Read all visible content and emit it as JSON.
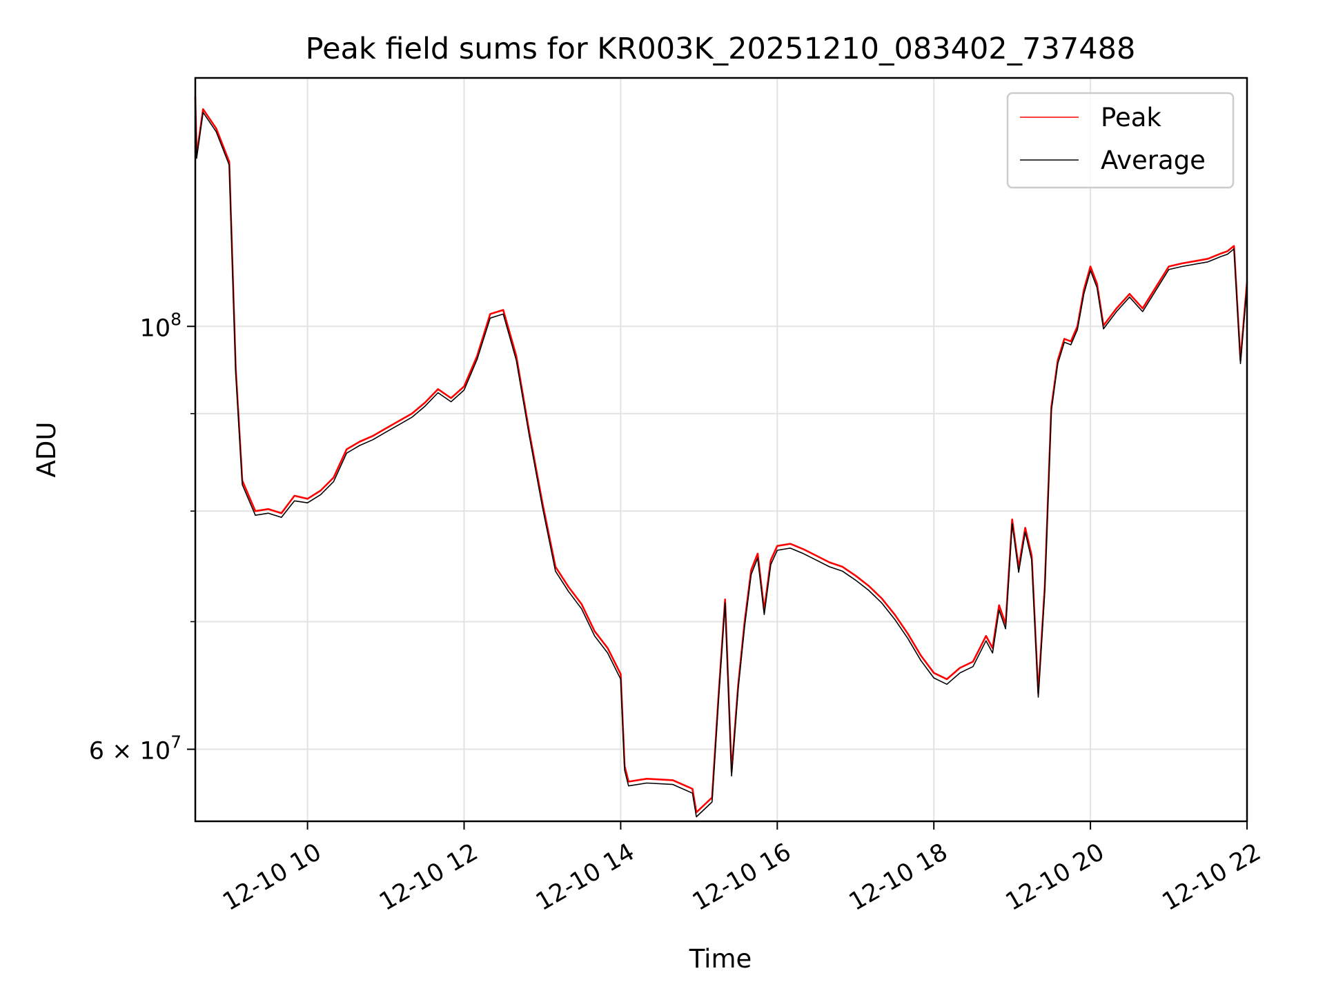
{
  "chart_data": {
    "type": "line",
    "title": "Peak field sums for KR003K_20251210_083402_737488",
    "xlabel": "Time",
    "ylabel": "ADU",
    "yscale": "log",
    "grid": true,
    "legend_position": "top-right",
    "xlim": [
      "2025-12-10 08:34",
      "2025-12-10 22:00"
    ],
    "ylim": [
      55000000,
      135000000
    ],
    "x_ticks": [
      {
        "value": "2025-12-10 10:00",
        "label": "12-10 10"
      },
      {
        "value": "2025-12-10 12:00",
        "label": "12-10 12"
      },
      {
        "value": "2025-12-10 14:00",
        "label": "12-10 14"
      },
      {
        "value": "2025-12-10 16:00",
        "label": "12-10 16"
      },
      {
        "value": "2025-12-10 18:00",
        "label": "12-10 18"
      },
      {
        "value": "2025-12-10 20:00",
        "label": "12-10 20"
      },
      {
        "value": "2025-12-10 22:00",
        "label": "12-10 22"
      }
    ],
    "y_major_ticks": [
      {
        "value": 100000000,
        "mantissa": "10",
        "exp": "8"
      },
      {
        "value": 60000000,
        "mantissa": "6 × 10",
        "exp": "7"
      }
    ],
    "y_minor_ticks": [
      70000000,
      80000000,
      90000000
    ],
    "x": [
      "2025-12-10 08:34",
      "2025-12-10 08:35",
      "2025-12-10 08:40",
      "2025-12-10 08:50",
      "2025-12-10 09:00",
      "2025-12-10 09:05",
      "2025-12-10 09:10",
      "2025-12-10 09:20",
      "2025-12-10 09:30",
      "2025-12-10 09:40",
      "2025-12-10 09:50",
      "2025-12-10 10:00",
      "2025-12-10 10:10",
      "2025-12-10 10:20",
      "2025-12-10 10:30",
      "2025-12-10 10:40",
      "2025-12-10 10:50",
      "2025-12-10 11:00",
      "2025-12-10 11:10",
      "2025-12-10 11:20",
      "2025-12-10 11:30",
      "2025-12-10 11:40",
      "2025-12-10 11:50",
      "2025-12-10 12:00",
      "2025-12-10 12:10",
      "2025-12-10 12:20",
      "2025-12-10 12:30",
      "2025-12-10 12:40",
      "2025-12-10 12:50",
      "2025-12-10 13:00",
      "2025-12-10 13:10",
      "2025-12-10 13:20",
      "2025-12-10 13:30",
      "2025-12-10 13:40",
      "2025-12-10 13:50",
      "2025-12-10 14:00",
      "2025-12-10 14:03",
      "2025-12-10 14:06",
      "2025-12-10 14:20",
      "2025-12-10 14:40",
      "2025-12-10 14:55",
      "2025-12-10 14:58",
      "2025-12-10 15:10",
      "2025-12-10 15:15",
      "2025-12-10 15:20",
      "2025-12-10 15:25",
      "2025-12-10 15:30",
      "2025-12-10 15:35",
      "2025-12-10 15:40",
      "2025-12-10 15:45",
      "2025-12-10 15:50",
      "2025-12-10 15:55",
      "2025-12-10 16:00",
      "2025-12-10 16:10",
      "2025-12-10 16:20",
      "2025-12-10 16:30",
      "2025-12-10 16:40",
      "2025-12-10 16:50",
      "2025-12-10 17:00",
      "2025-12-10 17:10",
      "2025-12-10 17:20",
      "2025-12-10 17:30",
      "2025-12-10 17:40",
      "2025-12-10 17:50",
      "2025-12-10 18:00",
      "2025-12-10 18:10",
      "2025-12-10 18:20",
      "2025-12-10 18:30",
      "2025-12-10 18:40",
      "2025-12-10 18:45",
      "2025-12-10 18:50",
      "2025-12-10 18:55",
      "2025-12-10 19:00",
      "2025-12-10 19:05",
      "2025-12-10 19:10",
      "2025-12-10 19:15",
      "2025-12-10 19:20",
      "2025-12-10 19:25",
      "2025-12-10 19:30",
      "2025-12-10 19:35",
      "2025-12-10 19:40",
      "2025-12-10 19:45",
      "2025-12-10 19:50",
      "2025-12-10 19:55",
      "2025-12-10 20:00",
      "2025-12-10 20:05",
      "2025-12-10 20:10",
      "2025-12-10 20:20",
      "2025-12-10 20:30",
      "2025-12-10 20:40",
      "2025-12-10 20:50",
      "2025-12-10 21:00",
      "2025-12-10 21:10",
      "2025-12-10 21:20",
      "2025-12-10 21:30",
      "2025-12-10 21:40",
      "2025-12-10 21:45",
      "2025-12-10 21:50",
      "2025-12-10 21:55",
      "2025-12-10 22:00"
    ],
    "series": [
      {
        "name": "Peak",
        "color": "#ff0000",
        "values": [
          132000000,
          123000000,
          130000000,
          127000000,
          122000000,
          95000000,
          83000000,
          80000000,
          80200000,
          79800000,
          81500000,
          81200000,
          82000000,
          83300000,
          86200000,
          87000000,
          87600000,
          88400000,
          89200000,
          90000000,
          91200000,
          92700000,
          91700000,
          93000000,
          96500000,
          101500000,
          102000000,
          96500000,
          88000000,
          80800000,
          74800000,
          73000000,
          71500000,
          69200000,
          67800000,
          65700000,
          58800000,
          57700000,
          57900000,
          57800000,
          57200000,
          55600000,
          56600000,
          64000000,
          71900000,
          58400000,
          64800000,
          70000000,
          74500000,
          76000000,
          71000000,
          75400000,
          76700000,
          76900000,
          76400000,
          75800000,
          75200000,
          74800000,
          74000000,
          73100000,
          72000000,
          70600000,
          69000000,
          67200000,
          65800000,
          65300000,
          66200000,
          66700000,
          68800000,
          67800000,
          71400000,
          69800000,
          79200000,
          74700000,
          78400000,
          75800000,
          64200000,
          73000000,
          90700000,
          96000000,
          98500000,
          98200000,
          100000000,
          104500000,
          107500000,
          105300000,
          100100000,
          102200000,
          104000000,
          102200000,
          104800000,
          107500000,
          107900000,
          108200000,
          108500000,
          109200000,
          109500000,
          110200000,
          96000000,
          105500000
        ]
      },
      {
        "name": "Average",
        "color": "#000000",
        "values": [
          131500000,
          122500000,
          129500000,
          126500000,
          121500000,
          94500000,
          82600000,
          79600000,
          79800000,
          79400000,
          81000000,
          80800000,
          81600000,
          82900000,
          85800000,
          86600000,
          87200000,
          88000000,
          88800000,
          89600000,
          90800000,
          92300000,
          91300000,
          92600000,
          96100000,
          101000000,
          101500000,
          96000000,
          87600000,
          80400000,
          74400000,
          72600000,
          71100000,
          68800000,
          67400000,
          65300000,
          58500000,
          57400000,
          57600000,
          57500000,
          56900000,
          55300000,
          56300000,
          63700000,
          71600000,
          58100000,
          64500000,
          69600000,
          74100000,
          75600000,
          70600000,
          75000000,
          76300000,
          76500000,
          76000000,
          75400000,
          74800000,
          74400000,
          73600000,
          72700000,
          71600000,
          70200000,
          68600000,
          66800000,
          65400000,
          64900000,
          65800000,
          66300000,
          68400000,
          67400000,
          71000000,
          69400000,
          78800000,
          74300000,
          78000000,
          75400000,
          63900000,
          72600000,
          90300000,
          95600000,
          98100000,
          97800000,
          99600000,
          104000000,
          107000000,
          104800000,
          99700000,
          101800000,
          103600000,
          101800000,
          104400000,
          107100000,
          107500000,
          107800000,
          108100000,
          108800000,
          109100000,
          109800000,
          95600000,
          105100000
        ]
      }
    ]
  }
}
